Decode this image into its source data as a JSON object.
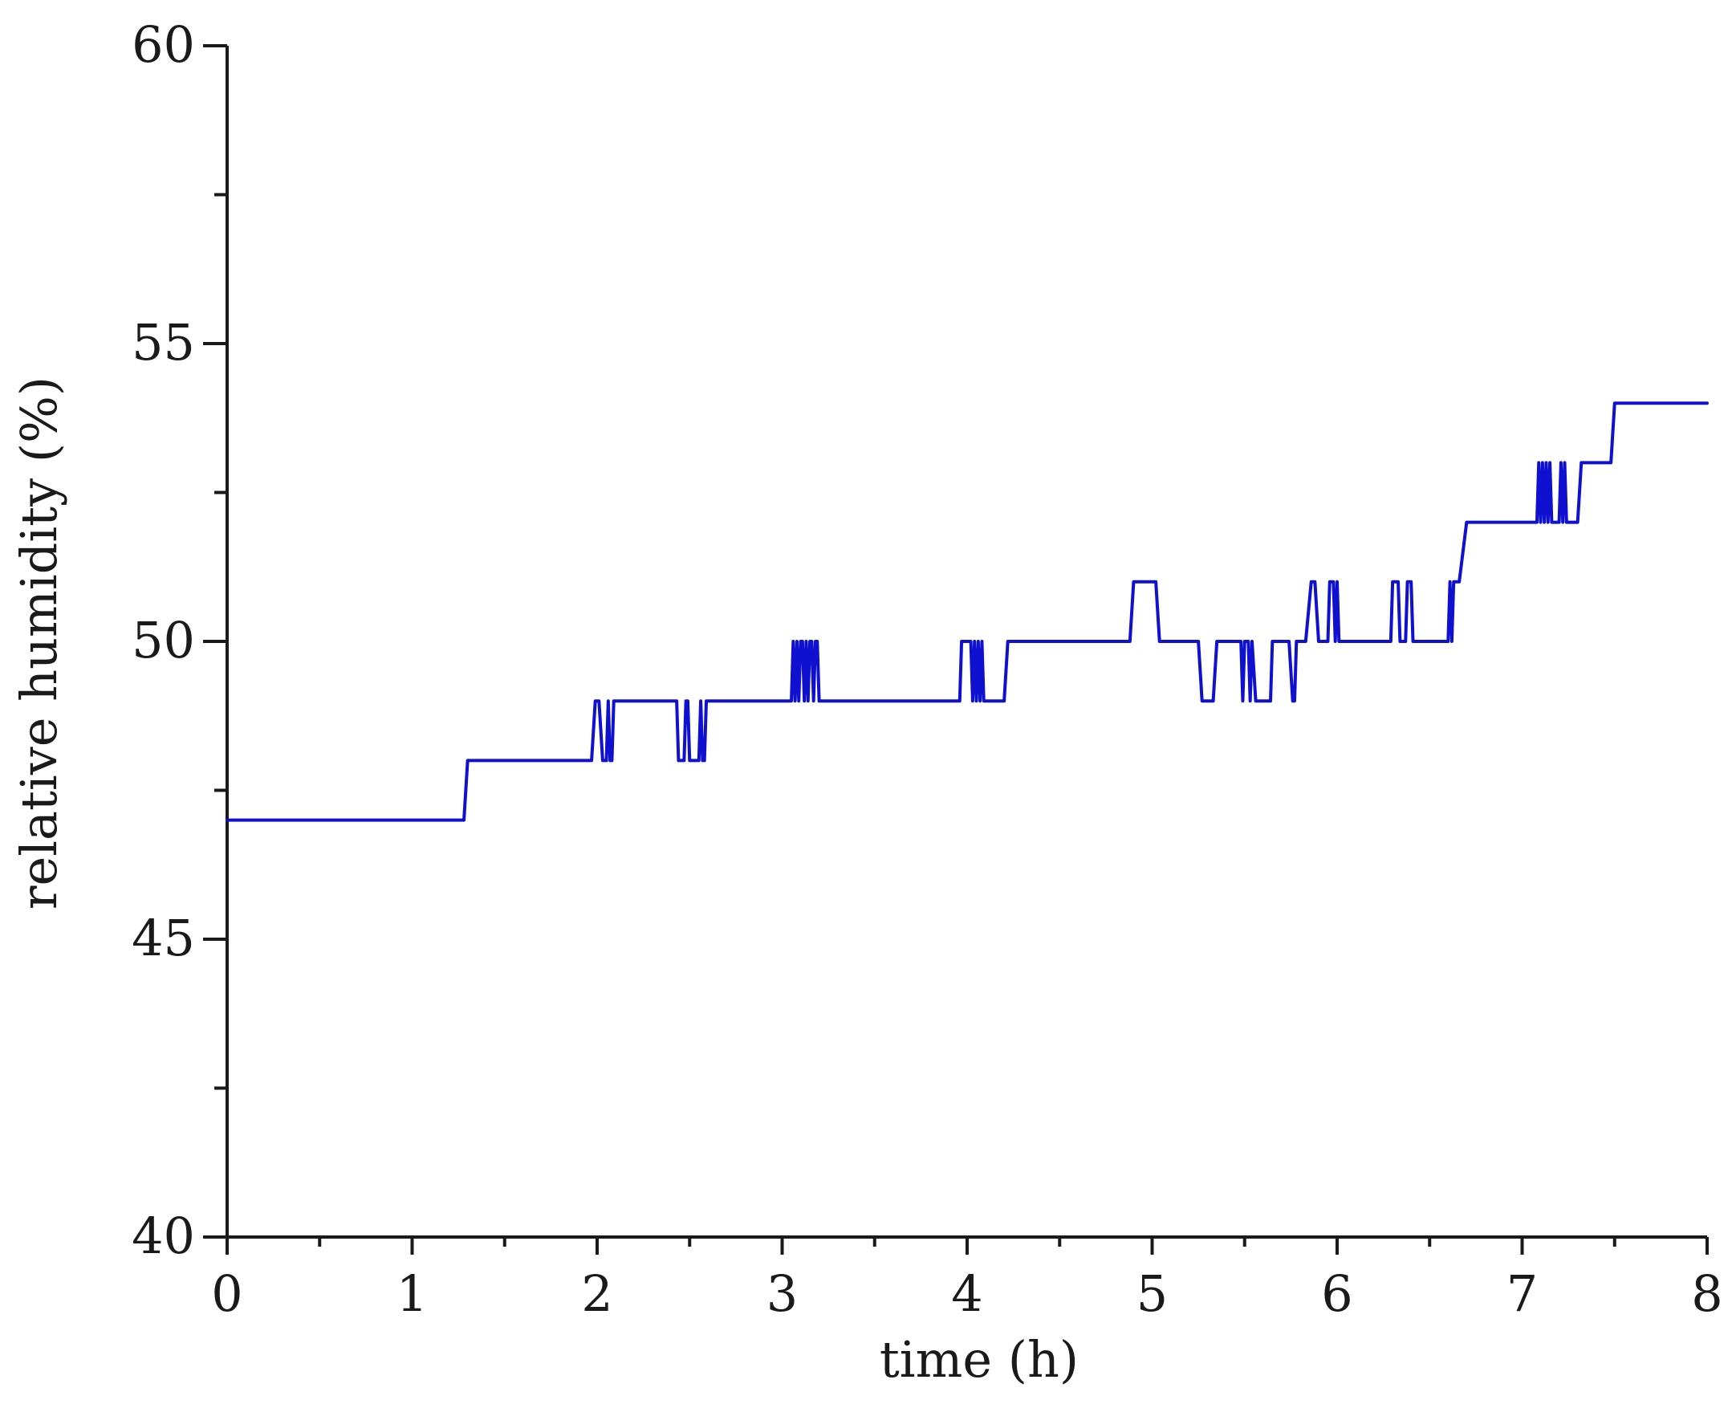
{
  "chart_data": {
    "type": "line",
    "title": "",
    "xlabel": "time (h)",
    "ylabel": "relative  humidity (%)",
    "xlim": [
      0,
      8
    ],
    "ylim": [
      40,
      60
    ],
    "xticks": [
      "0",
      "1",
      "2",
      "3",
      "4",
      "5",
      "6",
      "7",
      "8"
    ],
    "yticks": [
      "40",
      "45",
      "50",
      "55",
      "60"
    ],
    "x_minor_step": 0.5,
    "y_minor_step": 2.5,
    "grid": false,
    "legend": "none",
    "series": [
      {
        "name": "relative humidity",
        "color": "#1010d0",
        "points": [
          [
            0,
            47
          ],
          [
            1.28,
            47
          ],
          [
            1.3,
            48
          ],
          [
            1.97,
            48
          ],
          [
            1.99,
            49
          ],
          [
            2.01,
            49
          ],
          [
            2.03,
            48
          ],
          [
            2.05,
            48
          ],
          [
            2.06,
            49
          ],
          [
            2.07,
            48
          ],
          [
            2.08,
            48
          ],
          [
            2.09,
            49
          ],
          [
            2.43,
            49
          ],
          [
            2.44,
            48
          ],
          [
            2.47,
            48
          ],
          [
            2.48,
            49
          ],
          [
            2.49,
            49
          ],
          [
            2.5,
            48
          ],
          [
            2.55,
            48
          ],
          [
            2.56,
            49
          ],
          [
            2.57,
            48
          ],
          [
            2.58,
            48
          ],
          [
            2.59,
            49
          ],
          [
            3.05,
            49
          ],
          [
            3.06,
            50
          ],
          [
            3.07,
            49
          ],
          [
            3.08,
            50
          ],
          [
            3.09,
            49
          ],
          [
            3.1,
            50
          ],
          [
            3.11,
            50
          ],
          [
            3.12,
            49
          ],
          [
            3.13,
            50
          ],
          [
            3.14,
            49
          ],
          [
            3.15,
            50
          ],
          [
            3.16,
            50
          ],
          [
            3.17,
            49
          ],
          [
            3.18,
            50
          ],
          [
            3.19,
            50
          ],
          [
            3.2,
            49
          ],
          [
            3.96,
            49
          ],
          [
            3.97,
            50
          ],
          [
            4.02,
            50
          ],
          [
            4.03,
            49
          ],
          [
            4.04,
            50
          ],
          [
            4.05,
            49
          ],
          [
            4.06,
            50
          ],
          [
            4.07,
            49
          ],
          [
            4.08,
            50
          ],
          [
            4.09,
            49
          ],
          [
            4.2,
            49
          ],
          [
            4.22,
            50
          ],
          [
            4.88,
            50
          ],
          [
            4.9,
            51
          ],
          [
            5.02,
            51
          ],
          [
            5.04,
            50
          ],
          [
            5.25,
            50
          ],
          [
            5.27,
            49
          ],
          [
            5.33,
            49
          ],
          [
            5.35,
            50
          ],
          [
            5.48,
            50
          ],
          [
            5.49,
            49
          ],
          [
            5.5,
            50
          ],
          [
            5.52,
            50
          ],
          [
            5.53,
            49
          ],
          [
            5.54,
            50
          ],
          [
            5.56,
            49
          ],
          [
            5.64,
            49
          ],
          [
            5.65,
            50
          ],
          [
            5.74,
            50
          ],
          [
            5.76,
            49
          ],
          [
            5.77,
            49
          ],
          [
            5.78,
            50
          ],
          [
            5.83,
            50
          ],
          [
            5.86,
            51
          ],
          [
            5.88,
            51
          ],
          [
            5.9,
            50
          ],
          [
            5.95,
            50
          ],
          [
            5.96,
            51
          ],
          [
            5.98,
            51
          ],
          [
            5.99,
            50
          ],
          [
            6.0,
            51
          ],
          [
            6.01,
            50
          ],
          [
            6.29,
            50
          ],
          [
            6.3,
            51
          ],
          [
            6.33,
            51
          ],
          [
            6.34,
            50
          ],
          [
            6.37,
            50
          ],
          [
            6.38,
            51
          ],
          [
            6.4,
            51
          ],
          [
            6.41,
            50
          ],
          [
            6.6,
            50
          ],
          [
            6.61,
            51
          ],
          [
            6.62,
            50
          ],
          [
            6.63,
            51
          ],
          [
            6.66,
            51
          ],
          [
            6.7,
            52
          ],
          [
            7.08,
            52
          ],
          [
            7.09,
            53
          ],
          [
            7.1,
            52
          ],
          [
            7.11,
            53
          ],
          [
            7.12,
            52
          ],
          [
            7.13,
            53
          ],
          [
            7.14,
            52
          ],
          [
            7.15,
            53
          ],
          [
            7.16,
            52
          ],
          [
            7.2,
            52
          ],
          [
            7.21,
            53
          ],
          [
            7.22,
            52
          ],
          [
            7.23,
            53
          ],
          [
            7.24,
            52
          ],
          [
            7.3,
            52
          ],
          [
            7.32,
            53
          ],
          [
            7.48,
            53
          ],
          [
            7.5,
            54
          ],
          [
            8.0,
            54
          ]
        ]
      }
    ]
  }
}
